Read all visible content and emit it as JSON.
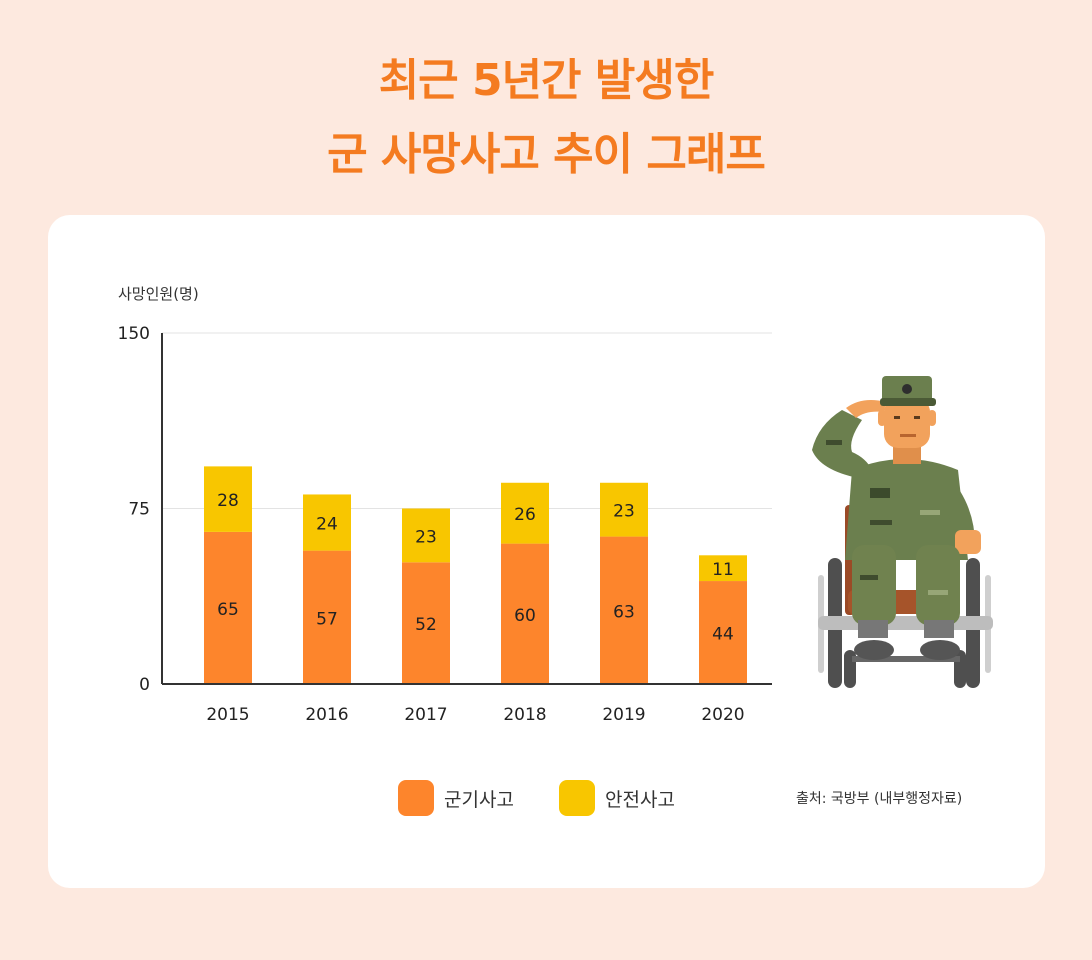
{
  "title_line1": "최근 5년간 발생한",
  "title_line2": "군 사망사고 추이 그래프",
  "source": "출처: 국방부 (내부행정자료)",
  "colors": {
    "accent": "#f47b20",
    "military": "#fd852c",
    "safety": "#f8c600",
    "background": "#fde9df"
  },
  "illustration": "saluting-soldier-in-wheelchair",
  "chart_data": {
    "type": "bar",
    "stacked": true,
    "ylabel": "사망인원(명)",
    "ylim": [
      0,
      150
    ],
    "yticks": [
      "0",
      "75",
      "150"
    ],
    "categories": [
      "2015",
      "2016",
      "2017",
      "2018",
      "2019",
      "2020"
    ],
    "series": [
      {
        "name": "군기사고",
        "values": [
          65,
          57,
          52,
          60,
          63,
          44
        ],
        "color": "#fd852c"
      },
      {
        "name": "안전사고",
        "values": [
          28,
          24,
          23,
          26,
          23,
          11
        ],
        "color": "#f8c600"
      }
    ],
    "grid": true,
    "legend": "bottom"
  }
}
